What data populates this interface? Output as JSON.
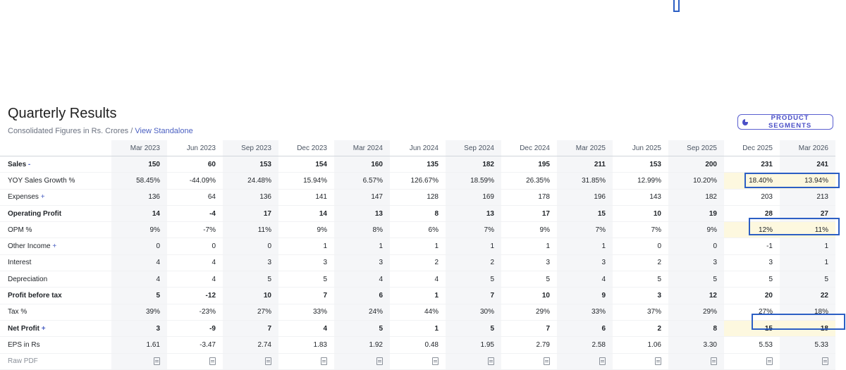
{
  "section": {
    "title": "Quarterly Results",
    "subtitle_prefix": "Consolidated Figures in Rs. Crores / ",
    "subtitle_link": "View Standalone",
    "product_segments_button": "PRODUCT SEGMENTS"
  },
  "table": {
    "columns": [
      "Mar 2023",
      "Jun 2023",
      "Sep 2023",
      "Dec 2023",
      "Mar 2024",
      "Jun 2024",
      "Sep 2024",
      "Dec 2024",
      "Mar 2025",
      "Jun 2025",
      "Sep 2025",
      "Dec 2025",
      "Mar 2026"
    ],
    "rows": [
      {
        "label": "Sales",
        "suffix": "-",
        "values": [
          "150",
          "60",
          "153",
          "154",
          "160",
          "135",
          "182",
          "195",
          "211",
          "153",
          "200",
          "231",
          "241"
        ]
      },
      {
        "label": "YOY Sales Growth %",
        "values": [
          "58.45%",
          "-44.09%",
          "24.48%",
          "15.94%",
          "6.57%",
          "126.67%",
          "18.59%",
          "26.35%",
          "31.85%",
          "12.99%",
          "10.20%",
          "18.40%",
          "13.94%"
        ]
      },
      {
        "label": "Expenses",
        "suffix": "+",
        "values": [
          "136",
          "64",
          "136",
          "141",
          "147",
          "128",
          "169",
          "178",
          "196",
          "143",
          "182",
          "203",
          "213"
        ]
      },
      {
        "label": "Operating Profit",
        "values": [
          "14",
          "-4",
          "17",
          "14",
          "13",
          "8",
          "13",
          "17",
          "15",
          "10",
          "19",
          "28",
          "27"
        ]
      },
      {
        "label": "OPM %",
        "values": [
          "9%",
          "-7%",
          "11%",
          "9%",
          "8%",
          "6%",
          "7%",
          "9%",
          "7%",
          "7%",
          "9%",
          "12%",
          "11%"
        ]
      },
      {
        "label": "Other Income",
        "suffix": "+",
        "values": [
          "0",
          "0",
          "0",
          "1",
          "1",
          "1",
          "1",
          "1",
          "1",
          "0",
          "0",
          "-1",
          "1"
        ]
      },
      {
        "label": "Interest",
        "values": [
          "4",
          "4",
          "3",
          "3",
          "3",
          "2",
          "2",
          "3",
          "3",
          "2",
          "3",
          "3",
          "1"
        ]
      },
      {
        "label": "Depreciation",
        "values": [
          "4",
          "4",
          "5",
          "5",
          "4",
          "4",
          "5",
          "5",
          "4",
          "5",
          "5",
          "5",
          "5"
        ]
      },
      {
        "label": "Profit before tax",
        "values": [
          "5",
          "-12",
          "10",
          "7",
          "6",
          "1",
          "7",
          "10",
          "9",
          "3",
          "12",
          "20",
          "22"
        ]
      },
      {
        "label": "Tax %",
        "values": [
          "39%",
          "-23%",
          "27%",
          "33%",
          "24%",
          "44%",
          "30%",
          "29%",
          "33%",
          "37%",
          "29%",
          "27%",
          "18%"
        ]
      },
      {
        "label": "Net Profit",
        "suffix": "+",
        "values": [
          "3",
          "-9",
          "7",
          "4",
          "5",
          "1",
          "5",
          "7",
          "6",
          "2",
          "8",
          "15",
          "18"
        ]
      },
      {
        "label": "EPS in Rs",
        "values": [
          "1.61",
          "-3.47",
          "2.74",
          "1.83",
          "1.92",
          "0.48",
          "1.95",
          "2.79",
          "2.58",
          "1.06",
          "3.30",
          "5.53",
          "5.33"
        ]
      },
      {
        "label": "Raw PDF",
        "values": []
      }
    ]
  },
  "colors": {
    "accent": "#4a5fc1",
    "highlight_border": "#2c5fc4",
    "highlight_fill": "#fdf8df"
  },
  "icons": {
    "product_segments": "pie-chart-icon",
    "raw_pdf": "pdf-file-icon"
  }
}
